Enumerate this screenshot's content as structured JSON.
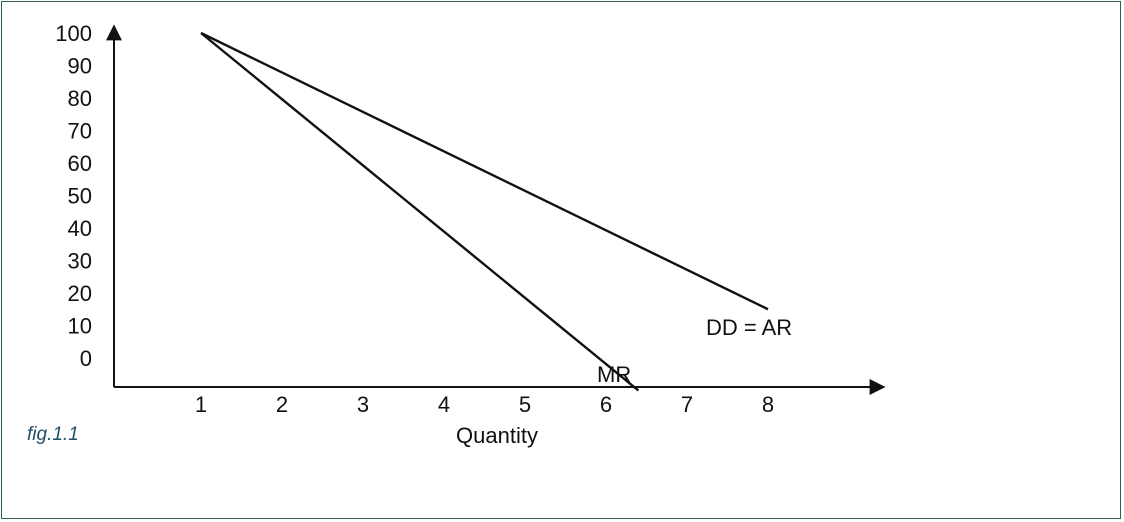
{
  "caption": "fig.1.1",
  "chart_data": {
    "type": "line",
    "title": "",
    "xlabel": "Quantity",
    "ylabel": "",
    "x_ticks": [
      "1",
      "2",
      "3",
      "4",
      "5",
      "6",
      "7",
      "8"
    ],
    "y_ticks": [
      "100",
      "90",
      "80",
      "70",
      "60",
      "50",
      "40",
      "30",
      "20",
      "10",
      "0"
    ],
    "xlim": [
      0,
      9
    ],
    "ylim": [
      -10,
      100
    ],
    "grid": false,
    "series": [
      {
        "name": "DD = AR",
        "color": "#111111",
        "points": [
          [
            1,
            100
          ],
          [
            8,
            15
          ]
        ]
      },
      {
        "name": "MR",
        "color": "#111111",
        "points": [
          [
            1,
            100
          ],
          [
            6.4,
            -10
          ]
        ]
      }
    ]
  }
}
